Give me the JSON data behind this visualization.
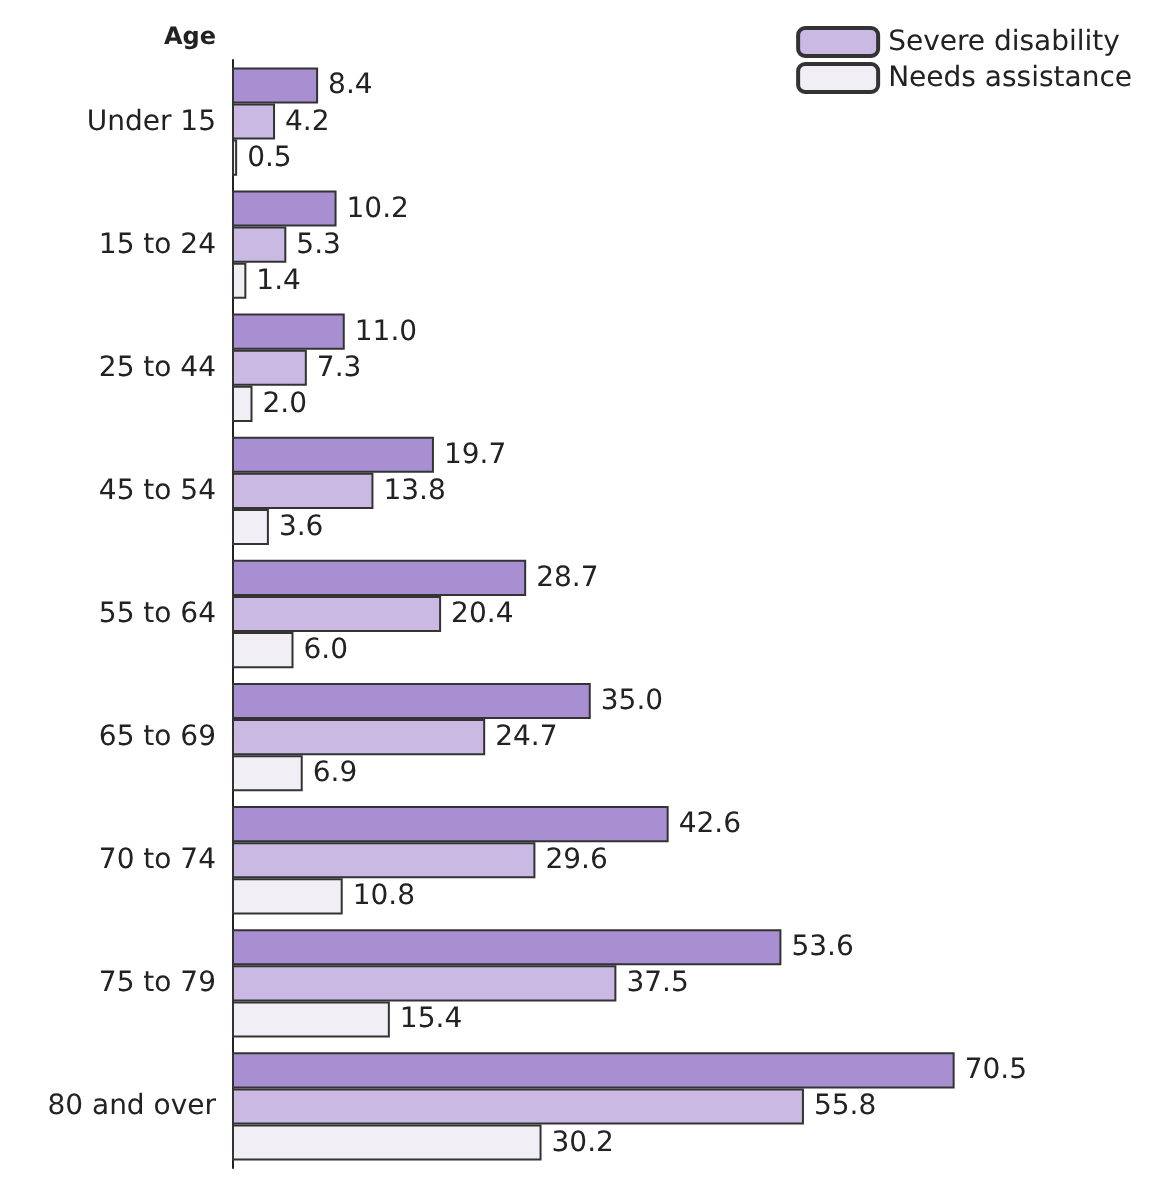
{
  "chart_data": {
    "type": "bar",
    "orientation": "horizontal",
    "ylabel": "Age",
    "categories": [
      "Under 15",
      "15 to 24",
      "25 to 44",
      "45 to 54",
      "55 to 64",
      "65 to 69",
      "70 to 74",
      "75 to 79",
      "80 and over"
    ],
    "series": [
      {
        "color": "#a88fd2",
        "values": [
          8.4,
          10.2,
          11.0,
          19.7,
          28.7,
          35.0,
          42.6,
          53.6,
          70.5
        ],
        "value_labels": [
          "8.4",
          "10.2",
          "11.0",
          "19.7",
          "28.7",
          "35.0",
          "42.6",
          "53.6",
          "70.5"
        ]
      },
      {
        "name": "Severe disability",
        "color": "#c9b9e3",
        "values": [
          4.2,
          5.3,
          7.3,
          13.8,
          20.4,
          24.7,
          29.6,
          37.5,
          55.8
        ],
        "value_labels": [
          "4.2",
          "5.3",
          "7.3",
          "13.8",
          "20.4",
          "24.7",
          "29.6",
          "37.5",
          "55.8"
        ]
      },
      {
        "name": "Needs assistance",
        "color": "#f1eef6",
        "values": [
          0.5,
          1.4,
          2.0,
          3.6,
          6.0,
          6.9,
          10.8,
          15.4,
          30.2
        ],
        "value_labels": [
          "0.5",
          "1.4",
          "2.0",
          "3.6",
          "6.0",
          "6.9",
          "10.8",
          "15.4",
          "30.2"
        ]
      }
    ],
    "legend": "top right"
  }
}
